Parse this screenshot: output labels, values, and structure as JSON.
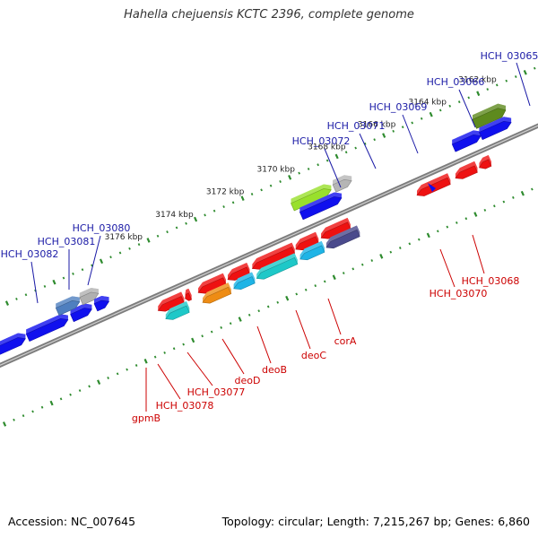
{
  "title": "Hahella chejuensis KCTC 2396, complete genome",
  "accession_label": "Accession: NC_007645",
  "summary_label": "Topology: circular; Length: 7,215,267 bp; Genes: 6,860",
  "colors": {
    "backbone": "#7d7d7d",
    "tick": "#2e8b2e",
    "top_label": "#1a1aa6",
    "bottom_label": "#cc0000"
  },
  "scale_ticks": [
    {
      "text": "3162 kbp"
    },
    {
      "text": "3164 kbp"
    },
    {
      "text": "3166 kbp"
    },
    {
      "text": "3168 kbp"
    },
    {
      "text": "3170 kbp"
    },
    {
      "text": "3172 kbp"
    },
    {
      "text": "3174 kbp"
    },
    {
      "text": "3176 kbp"
    }
  ],
  "genes_upper": [
    {
      "color": "#1010ee"
    },
    {
      "color": "#1010ee"
    },
    {
      "color": "#1010ee"
    },
    {
      "color": "#4f7fbf"
    },
    {
      "color": "#b0b0b0"
    },
    {
      "color": "#1010ee"
    },
    {
      "color": "#99e02c"
    },
    {
      "color": "#b5b5b5"
    },
    {
      "color": "#1010ee"
    },
    {
      "color": "#1010ee"
    },
    {
      "color": "#5e8a1e"
    },
    {
      "color": "#1010ee"
    }
  ],
  "genes_lower": [
    {
      "color": "#ee1111"
    },
    {
      "color": "#ee1111"
    },
    {
      "color": "#ee1111"
    },
    {
      "color": "#ee1111"
    },
    {
      "color": "#ee1111"
    },
    {
      "color": "#ee1111"
    },
    {
      "color": "#ee1111"
    },
    {
      "color": "#ee1111"
    },
    {
      "color": "#ee1111"
    },
    {
      "color": "#ee1111"
    },
    {
      "color": "#1ec8c8"
    },
    {
      "color": "#ee8c14"
    },
    {
      "color": "#1eb4e6"
    },
    {
      "color": "#1ec8c8"
    },
    {
      "color": "#1eb4e6"
    },
    {
      "color": "#4a4a8c"
    }
  ],
  "labels_top": [
    {
      "text": "HCH_03065"
    },
    {
      "text": "HCH_03066"
    },
    {
      "text": "HCH_03069"
    },
    {
      "text": "HCH_03071"
    },
    {
      "text": "HCH_03072"
    },
    {
      "text": "HCH_03080"
    },
    {
      "text": "HCH_03081"
    },
    {
      "text": "HCH_03082"
    }
  ],
  "labels_bottom": [
    {
      "text": "HCH_03068"
    },
    {
      "text": "HCH_03070"
    },
    {
      "text": "corA"
    },
    {
      "text": "deoC"
    },
    {
      "text": "deoB"
    },
    {
      "text": "deoD"
    },
    {
      "text": "HCH_03077"
    },
    {
      "text": "HCH_03078"
    },
    {
      "text": "gpmB"
    }
  ]
}
